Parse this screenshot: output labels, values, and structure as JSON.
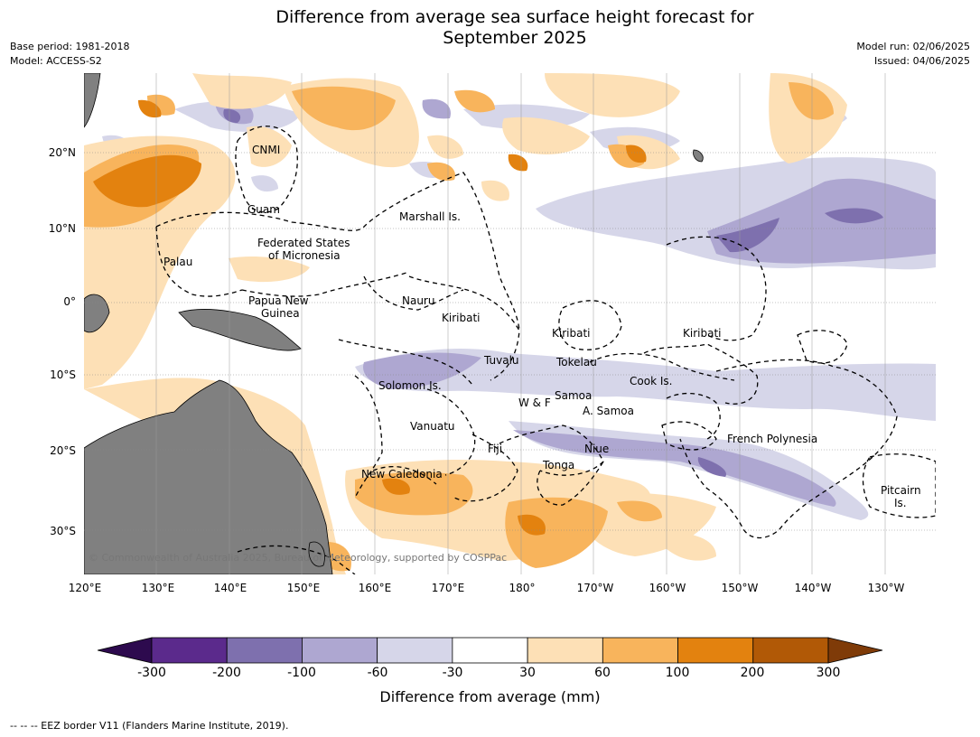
{
  "title": {
    "line1": "Difference from average sea surface height forecast for",
    "line2": "September 2025"
  },
  "meta_left": {
    "line1": "Base period: 1981-2018",
    "line2": "Model: ACCESS-S2"
  },
  "meta_right": {
    "line1": "Model run: 02/06/2025",
    "line2": "Issued: 04/06/2025"
  },
  "longitude_ticks": [
    "120°E",
    "130°E",
    "140°E",
    "150°E",
    "160°E",
    "170°E",
    "180°",
    "170°W",
    "160°W",
    "150°W",
    "140°W",
    "130°W"
  ],
  "latitude_ticks": [
    "20°N",
    "10°N",
    "0°",
    "10°S",
    "20°S",
    "30°S"
  ],
  "regions": [
    {
      "label": "CNMI"
    },
    {
      "label": "Guam"
    },
    {
      "label": "Marshall Is."
    },
    {
      "label": "Federated States"
    },
    {
      "label": "of Micronesia"
    },
    {
      "label": "Palau"
    },
    {
      "label": "Nauru"
    },
    {
      "label": "Papua New"
    },
    {
      "label": "Guinea"
    },
    {
      "label": "Kiribati"
    },
    {
      "label": "Kiribati"
    },
    {
      "label": "Kiribati"
    },
    {
      "label": "Tuvalu"
    },
    {
      "label": "Tokelau"
    },
    {
      "label": "Solomon Is."
    },
    {
      "label": "Cook Is."
    },
    {
      "label": "Samoa"
    },
    {
      "label": "W & F"
    },
    {
      "label": "A. Samoa"
    },
    {
      "label": "Vanuatu"
    },
    {
      "label": "Fiji"
    },
    {
      "label": "Niue"
    },
    {
      "label": "French Polynesia"
    },
    {
      "label": "Tonga"
    },
    {
      "label": "New Caledonia"
    },
    {
      "label": "Pitcairn"
    },
    {
      "label": "Is."
    }
  ],
  "copyright": "© Commonwealth of Australia 2025, Bureau of Meteorology, supported by COSPPac",
  "colorbar": {
    "ticks": [
      "-300",
      "-200",
      "-100",
      "-60",
      "-30",
      "30",
      "60",
      "100",
      "200",
      "300"
    ],
    "bins": [
      {
        "color": "#5b2a8c"
      },
      {
        "color": "#7e70ae"
      },
      {
        "color": "#aea7d1"
      },
      {
        "color": "#d6d6e9"
      },
      {
        "color": "#ffffff"
      },
      {
        "color": "#fde0b6"
      },
      {
        "color": "#f8b45c"
      },
      {
        "color": "#e3820f"
      },
      {
        "color": "#b15906"
      }
    ],
    "under_color": "#2d0a4e",
    "over_color": "#7f3b08",
    "title": "Difference from average (mm)"
  },
  "colors": {
    "land": "#808080",
    "ocean": "#ffffff"
  },
  "footnote": "--  --  -- EEZ border V11 (Flanders Marine Institute, 2019)."
}
